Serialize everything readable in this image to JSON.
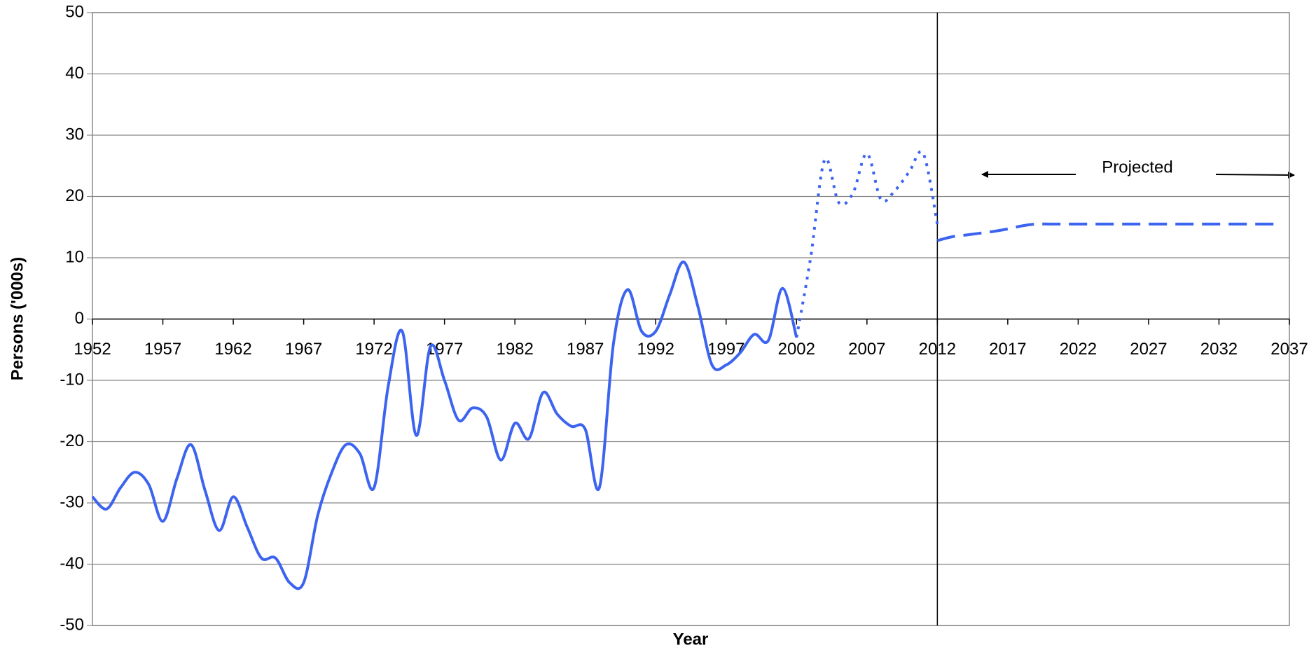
{
  "chart_data": {
    "type": "line",
    "xlabel": "Year",
    "ylabel": "Persons ('000s)",
    "xlim": [
      1952,
      2037
    ],
    "xticks": [
      1952,
      1957,
      1962,
      1967,
      1972,
      1977,
      1982,
      1987,
      1992,
      1997,
      2002,
      2007,
      2012,
      2017,
      2022,
      2027,
      2032,
      2037
    ],
    "ylim": [
      -50,
      50
    ],
    "yticks": [
      -50,
      -40,
      -30,
      -20,
      -10,
      0,
      10,
      20,
      30,
      40,
      50
    ],
    "grid": true,
    "vline": 2012,
    "annotation": "Projected",
    "series": [
      {
        "color": "#3c64f0",
        "dash": "solid",
        "x": [
          1952,
          1953,
          1954,
          1955,
          1956,
          1957,
          1958,
          1959,
          1960,
          1961,
          1962,
          1963,
          1964,
          1965,
          1966,
          1967,
          1968,
          1969,
          1970,
          1971,
          1972,
          1973,
          1974,
          1975,
          1976,
          1977,
          1978,
          1979,
          1980,
          1981,
          1982,
          1983,
          1984,
          1985,
          1986,
          1987,
          1988,
          1989,
          1990,
          1991,
          1992,
          1993,
          1994,
          1995,
          1996,
          1997,
          1998,
          1999,
          2000,
          2001,
          2002
        ],
        "values": [
          -29,
          -31,
          -27.5,
          -25,
          -27,
          -33,
          -26,
          -20.5,
          -28,
          -34.5,
          -29,
          -34,
          -39,
          -39,
          -43,
          -43,
          -32,
          -25,
          -20.5,
          -22,
          -27.5,
          -11,
          -2,
          -19,
          -4.5,
          -10,
          -16.5,
          -14.5,
          -16,
          -23,
          -17,
          -19.5,
          -12,
          -15.5,
          -17.5,
          -18,
          -27.5,
          -4,
          4.8,
          -2,
          -2,
          4,
          9.3,
          2,
          -7.5,
          -7.5,
          -5.5,
          -2.5,
          -3.5,
          5,
          -3
        ]
      },
      {
        "color": "#3c64f0",
        "dash": "dotted",
        "x": [
          2002,
          2003,
          2004,
          2005,
          2006,
          2007,
          2008,
          2009,
          2010,
          2011,
          2012
        ],
        "values": [
          -3,
          10,
          26,
          19,
          20.5,
          27,
          19.5,
          21,
          24,
          27,
          15.5
        ]
      },
      {
        "color": "#3c64f0",
        "dash": "dashed",
        "x": [
          2012,
          2013,
          2014,
          2015,
          2016,
          2017,
          2018,
          2019,
          2020,
          2021,
          2022,
          2023,
          2024,
          2025,
          2026,
          2027,
          2028,
          2029,
          2030,
          2031,
          2032,
          2033,
          2034,
          2035,
          2036
        ],
        "values": [
          12.8,
          13.4,
          13.7,
          14,
          14.3,
          14.7,
          15.2,
          15.5,
          15.5,
          15.5,
          15.5,
          15.5,
          15.5,
          15.5,
          15.5,
          15.5,
          15.5,
          15.5,
          15.5,
          15.5,
          15.5,
          15.5,
          15.5,
          15.5,
          15.5
        ]
      }
    ]
  }
}
